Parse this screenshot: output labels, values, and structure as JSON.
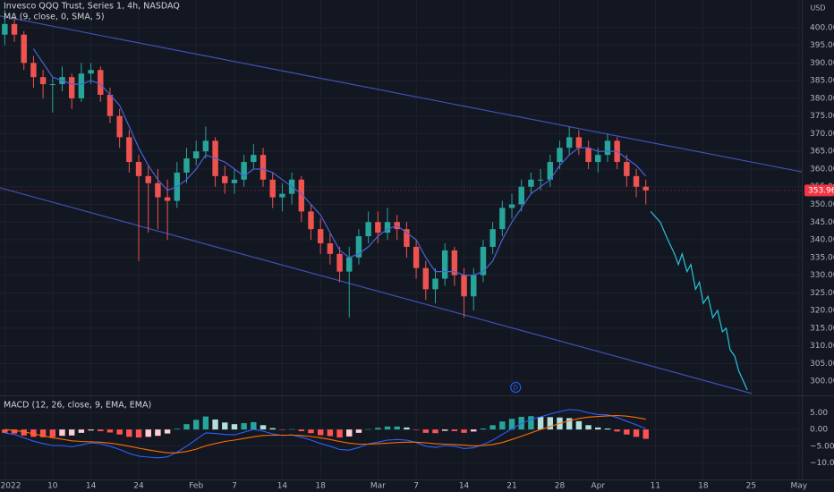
{
  "chart_data": [
    {
      "type": "candlestick",
      "title": "Invesco QQQ Trust, Series 1, 4h, NASDAQ",
      "currency": "USD",
      "open": [
        398,
        401,
        398,
        390,
        386,
        384,
        384,
        386,
        380,
        387,
        388,
        381,
        375,
        369,
        362,
        358,
        356,
        352,
        351,
        359,
        363,
        365,
        368,
        358,
        356,
        357,
        362,
        364,
        357,
        352,
        353,
        357,
        348,
        343,
        339,
        336,
        331,
        335,
        341,
        345,
        342,
        345,
        343,
        338,
        332,
        326,
        329,
        337,
        330,
        324,
        330,
        338,
        343,
        349,
        350,
        355,
        357,
        357,
        362,
        366,
        369,
        366,
        362,
        364,
        368,
        362,
        358,
        355
      ],
      "high": [
        405,
        403,
        399,
        392,
        388,
        386,
        389,
        387,
        390,
        390,
        389,
        383,
        377,
        371,
        364,
        361,
        360,
        357,
        362,
        366,
        368,
        372,
        369,
        361,
        360,
        364,
        367,
        366,
        359,
        356,
        359,
        358,
        350,
        346,
        342,
        338,
        338,
        343,
        348,
        348,
        349,
        347,
        345,
        340,
        334,
        332,
        339,
        338,
        332,
        332,
        340,
        345,
        351,
        353,
        357,
        359,
        360,
        364,
        368,
        372,
        371,
        368,
        366,
        370,
        369,
        364,
        360,
        357
      ],
      "low": [
        395,
        396,
        388,
        383,
        380,
        376,
        382,
        377,
        379,
        384,
        379,
        373,
        366,
        359,
        334,
        342,
        343,
        340,
        349,
        356,
        361,
        363,
        355,
        353,
        353,
        355,
        360,
        355,
        349,
        348,
        350,
        345,
        340,
        336,
        333,
        328,
        318,
        333,
        339,
        339,
        340,
        340,
        335,
        329,
        323,
        322,
        327,
        327,
        318,
        320,
        328,
        336,
        341,
        346,
        348,
        353,
        354,
        355,
        360,
        364,
        364,
        360,
        359,
        362,
        360,
        355,
        352,
        350
      ],
      "close": [
        401,
        398,
        390,
        386,
        384,
        384,
        386,
        380,
        387,
        388,
        381,
        375,
        369,
        362,
        358,
        356,
        352,
        351,
        359,
        363,
        365,
        368,
        358,
        356,
        357,
        362,
        364,
        357,
        352,
        353,
        357,
        348,
        343,
        339,
        336,
        331,
        335,
        341,
        345,
        342,
        345,
        343,
        338,
        332,
        326,
        329,
        337,
        330,
        324,
        330,
        338,
        343,
        349,
        350,
        355,
        357,
        357,
        362,
        366,
        369,
        366,
        362,
        364,
        368,
        362,
        358,
        355,
        353.96
      ],
      "up_color": "#26a69a",
      "down_color": "#ef5350",
      "series": [
        {
          "name": "MA (9, close, 0, SMA, 5)",
          "color": "#4a63d8",
          "values": [
            null,
            null,
            null,
            394,
            390,
            386,
            385,
            384,
            384,
            385,
            384,
            381,
            378,
            372,
            366,
            361,
            357,
            354,
            355,
            357,
            360,
            364,
            363,
            362,
            360,
            358,
            360,
            360,
            359,
            357,
            355,
            353,
            350,
            347,
            342,
            337,
            335,
            336,
            338,
            341,
            343,
            344,
            342,
            340,
            335,
            331,
            331,
            331,
            330,
            330,
            331,
            334,
            340,
            345,
            349,
            353,
            355,
            357,
            361,
            364,
            366,
            366,
            365,
            365,
            365,
            363,
            361,
            358
          ]
        }
      ],
      "projection": {
        "color": "#26c6da",
        "x": [
          67.5,
          68.5,
          69.3,
          70,
          70.4,
          70.8,
          71.3,
          71.7,
          72.2,
          72.6,
          73,
          73.5,
          74,
          74.5,
          75,
          75.4,
          75.8,
          76.3,
          76.7,
          77.2,
          77.6
        ],
        "values": [
          348,
          345,
          340,
          336,
          333,
          336,
          331,
          333,
          326,
          328,
          322,
          324,
          318,
          320,
          314,
          315,
          309,
          307,
          303,
          300,
          297.5
        ]
      },
      "trendlines": [
        {
          "color": "#3f51b5",
          "x": [
            -0.5,
            83.3
          ],
          "values": [
            403.3,
            359.2
          ]
        },
        {
          "color": "#3f51b5",
          "x": [
            -0.5,
            78.1
          ],
          "values": [
            354.7,
            296.5
          ]
        }
      ],
      "last_price": 353.96,
      "last_price_color": "#f23645",
      "markers": [
        {
          "x": 53.4,
          "label": "D",
          "color": "#2962ff"
        }
      ],
      "xlim": [
        -0.5,
        83.3
      ],
      "xticks": [
        {
          "value": 0,
          "label": "2022"
        },
        {
          "value": 5,
          "label": "10"
        },
        {
          "value": 9,
          "label": "14"
        },
        {
          "value": 14,
          "label": "24"
        },
        {
          "value": 20,
          "label": "Feb"
        },
        {
          "value": 24,
          "label": "7"
        },
        {
          "value": 29,
          "label": "14"
        },
        {
          "value": 33,
          "label": "18"
        },
        {
          "value": 39,
          "label": "Mar"
        },
        {
          "value": 43,
          "label": "7"
        },
        {
          "value": 48,
          "label": "14"
        },
        {
          "value": 53,
          "label": "21"
        },
        {
          "value": 58,
          "label": "28"
        },
        {
          "value": 62,
          "label": "Apr"
        },
        {
          "value": 68,
          "label": "11"
        },
        {
          "value": 73,
          "label": "18"
        },
        {
          "value": 78,
          "label": "25"
        },
        {
          "value": 83,
          "label": "May"
        }
      ],
      "ylim": [
        296.5,
        407.8
      ],
      "yticks": [
        {
          "value": 300,
          "label": "300.00"
        },
        {
          "value": 305,
          "label": "305.00"
        },
        {
          "value": 310,
          "label": "310.00"
        },
        {
          "value": 315,
          "label": "315.00"
        },
        {
          "value": 320,
          "label": "320.00"
        },
        {
          "value": 325,
          "label": "325.00"
        },
        {
          "value": 330,
          "label": "330.00"
        },
        {
          "value": 335,
          "label": "335.00"
        },
        {
          "value": 340,
          "label": "340.00"
        },
        {
          "value": 345,
          "label": "345.00"
        },
        {
          "value": 350,
          "label": "350.00"
        },
        {
          "value": 355,
          "label": "355.00"
        },
        {
          "value": 360,
          "label": "360.00"
        },
        {
          "value": 365,
          "label": "365.00"
        },
        {
          "value": 370,
          "label": "370.00"
        },
        {
          "value": 375,
          "label": "375.00"
        },
        {
          "value": 380,
          "label": "380.00"
        },
        {
          "value": 385,
          "label": "385.00"
        },
        {
          "value": 390,
          "label": "390.00"
        },
        {
          "value": 395,
          "label": "395.00"
        },
        {
          "value": 400,
          "label": "400.00"
        }
      ],
      "grid": true
    },
    {
      "type": "macd",
      "title": "MACD (12, 26, close, 9, EMA, EMA)",
      "histogram": [
        -1,
        -1.2,
        -1.8,
        -2.2,
        -2.3,
        -2.3,
        -1.9,
        -1.8,
        -1.0,
        -0.3,
        -0.5,
        -0.9,
        -1.5,
        -2.2,
        -2.4,
        -2.2,
        -1.9,
        -1.2,
        0.2,
        1.6,
        2.9,
        3.9,
        3.0,
        2.1,
        1.6,
        1.9,
        2.2,
        1.3,
        0.4,
        -0.1,
        0.1,
        -0.5,
        -1.1,
        -1.7,
        -2.0,
        -2.4,
        -2.1,
        -1.0,
        0.1,
        0.5,
        0.9,
        0.9,
        0.6,
        -0.1,
        -1.0,
        -1.1,
        -0.4,
        -0.5,
        -1.0,
        -0.6,
        0.3,
        1.3,
        2.4,
        3.2,
        3.8,
        4.0,
        3.8,
        3.7,
        3.6,
        3.4,
        2.5,
        1.3,
        0.6,
        0.3,
        -0.6,
        -1.5,
        -2.2,
        -2.8
      ],
      "histogram_colors": [
        "#26a69a",
        "#b2dfdb",
        "#ff5252",
        "#ffcdd2"
      ],
      "series": [
        {
          "name": "MACD",
          "color": "#2962ff",
          "values": [
            -1,
            -1.5,
            -2.5,
            -3.5,
            -4.2,
            -4.8,
            -4.8,
            -5.2,
            -4.6,
            -4.0,
            -4.3,
            -5.0,
            -6.0,
            -7.2,
            -8.0,
            -8.3,
            -8.5,
            -8.2,
            -6.8,
            -5.0,
            -3.0,
            -1.0,
            -1.2,
            -1.5,
            -1.6,
            -0.8,
            0.0,
            -0.5,
            -1.3,
            -1.8,
            -1.6,
            -2.3,
            -3.2,
            -4.2,
            -5.0,
            -6.0,
            -6.2,
            -5.4,
            -4.3,
            -3.8,
            -3.2,
            -3.0,
            -3.2,
            -3.9,
            -5.0,
            -5.4,
            -4.8,
            -5.0,
            -5.7,
            -5.5,
            -4.5,
            -3.2,
            -1.5,
            0.2,
            1.8,
            3.0,
            3.8,
            4.6,
            5.4,
            6.0,
            5.8,
            5.0,
            4.5,
            4.4,
            3.6,
            2.5,
            1.4,
            0.3
          ]
        },
        {
          "name": "Signal",
          "color": "#ff6d00",
          "values": [
            0,
            -0.3,
            -0.7,
            -1.3,
            -1.9,
            -2.5,
            -2.9,
            -3.4,
            -3.6,
            -3.7,
            -3.8,
            -4.1,
            -4.5,
            -5.0,
            -5.6,
            -6.1,
            -6.6,
            -7.0,
            -7.0,
            -6.6,
            -5.9,
            -4.9,
            -4.2,
            -3.6,
            -3.2,
            -2.7,
            -2.2,
            -1.8,
            -1.7,
            -1.7,
            -1.7,
            -1.8,
            -2.1,
            -2.5,
            -3.0,
            -3.6,
            -4.1,
            -4.4,
            -4.4,
            -4.3,
            -4.1,
            -3.9,
            -3.8,
            -3.8,
            -4.0,
            -4.3,
            -4.4,
            -4.5,
            -4.7,
            -4.9,
            -4.8,
            -4.5,
            -3.9,
            -3.0,
            -2.0,
            -1.0,
            0.0,
            0.9,
            1.8,
            2.6,
            3.3,
            3.7,
            3.9,
            4.1,
            4.2,
            4.0,
            3.6,
            3.1
          ]
        }
      ],
      "ylim": [
        -15,
        9.7
      ],
      "yticks": [
        {
          "value": 5,
          "label": "5.00"
        },
        {
          "value": 0,
          "label": "0.00"
        },
        {
          "value": -5,
          "label": "−5.00"
        },
        {
          "value": -10,
          "label": "−10.00"
        }
      ],
      "grid": true
    }
  ]
}
